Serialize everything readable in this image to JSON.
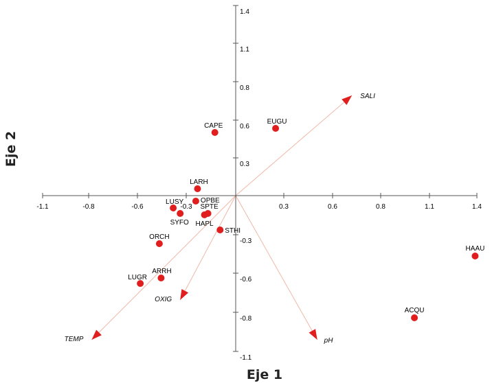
{
  "chart_data": {
    "type": "scatter",
    "xlabel": "Eje 1",
    "ylabel": "Eje 2",
    "xlim": [
      -1.1,
      1.4
    ],
    "ylim": [
      -1.1,
      1.4
    ],
    "x_ticks": [
      "-1.1",
      "-0.8",
      "-0.6",
      "-0.3",
      "0.3",
      "0.6",
      "0.8",
      "1.1",
      "1.4"
    ],
    "y_ticks": [
      "1.4",
      "1.1",
      "0.8",
      "0.6",
      "0.3",
      "-0.3",
      "-0.6",
      "-0.8",
      "-1.1"
    ],
    "grid": false,
    "point_color": "#e01e1e",
    "vector_color": "#f0b8a8",
    "arrowhead_color": "#e01e1e",
    "points": [
      {
        "label": "EUGU",
        "x": 0.23,
        "y": 0.49
      },
      {
        "label": "CAPE",
        "x": -0.12,
        "y": 0.46
      },
      {
        "label": "LARH",
        "x": -0.22,
        "y": 0.05
      },
      {
        "label": "OPBE",
        "x": -0.23,
        "y": -0.04
      },
      {
        "label": "LUSY",
        "x": -0.36,
        "y": -0.09
      },
      {
        "label": "SYFO",
        "x": -0.32,
        "y": -0.13
      },
      {
        "label": "SPTE",
        "x": -0.16,
        "y": -0.13
      },
      {
        "label": "HAPL",
        "x": -0.18,
        "y": -0.14
      },
      {
        "label": "STHI",
        "x": -0.09,
        "y": -0.25
      },
      {
        "label": "ORCH",
        "x": -0.44,
        "y": -0.35
      },
      {
        "label": "ARRH",
        "x": -0.43,
        "y": -0.6
      },
      {
        "label": "LUGR",
        "x": -0.55,
        "y": -0.64
      },
      {
        "label": "HAAU",
        "x": 1.38,
        "y": -0.44
      },
      {
        "label": "ACQU",
        "x": 1.03,
        "y": -0.89
      }
    ],
    "vectors": [
      {
        "label": "SALI",
        "x": 0.67,
        "y": 0.73
      },
      {
        "label": "OXIG",
        "x": -0.32,
        "y": -0.76
      },
      {
        "label": "TEMP",
        "x": -0.83,
        "y": -1.05
      },
      {
        "label": "pH",
        "x": 0.47,
        "y": -1.05
      }
    ]
  }
}
